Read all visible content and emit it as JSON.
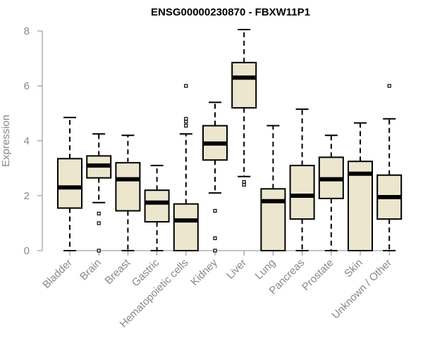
{
  "chart_data": {
    "type": "boxplot",
    "title": "ENSG00000230870 - FBXW11P1",
    "xlabel": "",
    "ylabel": "Expression",
    "ylim": [
      0,
      8
    ],
    "yticks": [
      0,
      2,
      4,
      6,
      8
    ],
    "colors": {
      "box_fill": "#ede6cf",
      "box_stroke": "#000000",
      "median": "#000000",
      "axis": "#888888"
    },
    "categories": [
      "Bladder",
      "Brain",
      "Breast",
      "Gastric",
      "Hematopoietic cells",
      "Kidney",
      "Liver",
      "Lung",
      "Pancreas",
      "Prostate",
      "Skin",
      "Unknown / Other"
    ],
    "boxes": [
      {
        "min": 0,
        "q1": 1.55,
        "median": 2.3,
        "q3": 3.35,
        "max": 4.85,
        "outliers": []
      },
      {
        "min": 1.75,
        "q1": 2.65,
        "median": 3.1,
        "q3": 3.45,
        "max": 4.25,
        "outliers": [
          1.35,
          1.0,
          0
        ]
      },
      {
        "min": 0,
        "q1": 1.45,
        "median": 2.6,
        "q3": 3.2,
        "max": 4.2,
        "outliers": []
      },
      {
        "min": 0,
        "q1": 1.05,
        "median": 1.75,
        "q3": 2.2,
        "max": 3.1,
        "outliers": []
      },
      {
        "min": 0,
        "q1": 0,
        "median": 1.1,
        "q3": 1.7,
        "max": 4.25,
        "outliers": [
          4.55,
          4.7,
          4.8,
          6.0
        ]
      },
      {
        "min": 2.1,
        "q1": 3.3,
        "median": 3.9,
        "q3": 4.55,
        "max": 5.4,
        "outliers": [
          1.45,
          0.45,
          0
        ]
      },
      {
        "min": 2.7,
        "q1": 5.2,
        "median": 6.3,
        "q3": 6.85,
        "max": 8.05,
        "outliers": [
          2.5,
          2.4
        ]
      },
      {
        "min": 0,
        "q1": 0,
        "median": 1.8,
        "q3": 2.25,
        "max": 4.55,
        "outliers": []
      },
      {
        "min": 0,
        "q1": 1.15,
        "median": 2.0,
        "q3": 3.1,
        "max": 5.15,
        "outliers": []
      },
      {
        "min": 0,
        "q1": 1.9,
        "median": 2.6,
        "q3": 3.4,
        "max": 4.2,
        "outliers": []
      },
      {
        "min": 0,
        "q1": 0,
        "median": 2.8,
        "q3": 3.25,
        "max": 4.65,
        "outliers": []
      },
      {
        "min": 0,
        "q1": 1.15,
        "median": 1.95,
        "q3": 2.75,
        "max": 4.8,
        "outliers": [
          6.0
        ]
      }
    ]
  }
}
